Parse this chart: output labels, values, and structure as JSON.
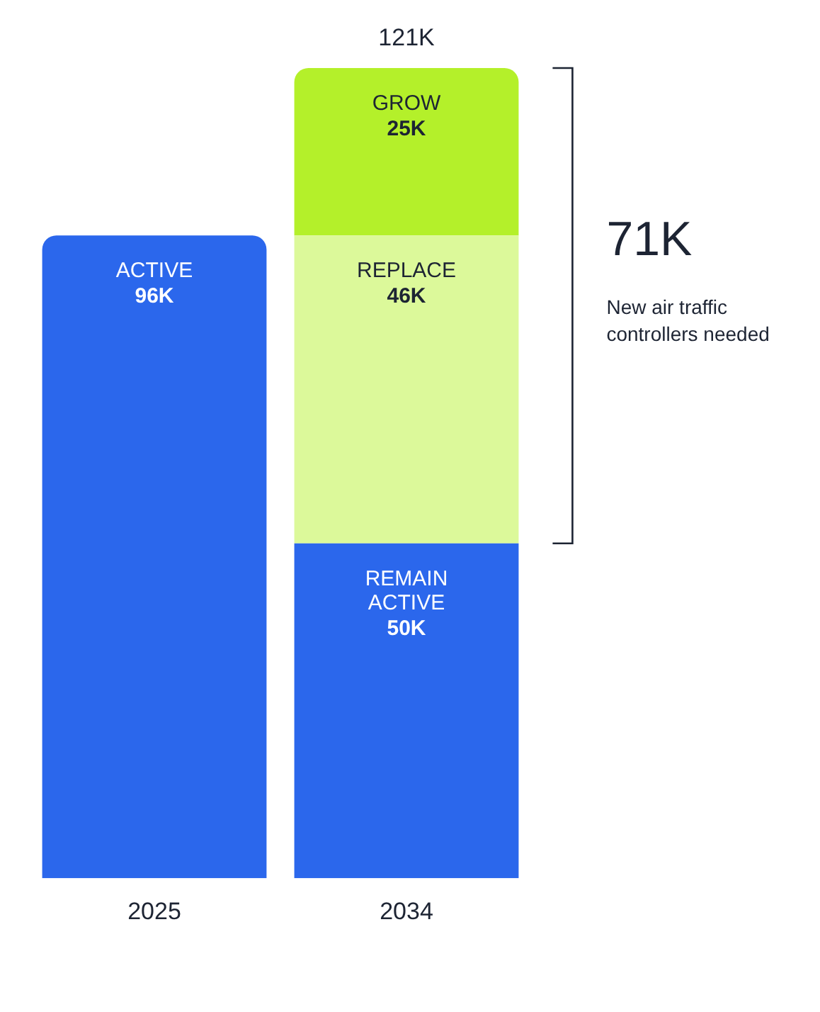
{
  "chart_data": {
    "type": "bar",
    "stacked": true,
    "categories": [
      "2025",
      "2034"
    ],
    "series": [
      {
        "name": "ACTIVE",
        "color": "#2b67ec",
        "values": [
          96,
          null
        ],
        "value_labels": [
          "96K",
          null
        ]
      },
      {
        "name": "REMAIN ACTIVE",
        "color": "#2b67ec",
        "values": [
          null,
          50
        ],
        "value_labels": [
          null,
          "50K"
        ]
      },
      {
        "name": "REPLACE",
        "color": "#dcf99a",
        "values": [
          null,
          46
        ],
        "value_labels": [
          null,
          "46K"
        ]
      },
      {
        "name": "GROW",
        "color": "#b4f02a",
        "values": [
          null,
          25
        ],
        "value_labels": [
          null,
          "25K"
        ]
      }
    ],
    "totals": [
      null,
      "121K"
    ],
    "annotations": [
      "71K",
      "New air traffic controllers needed"
    ],
    "grid": false,
    "legend": false
  }
}
